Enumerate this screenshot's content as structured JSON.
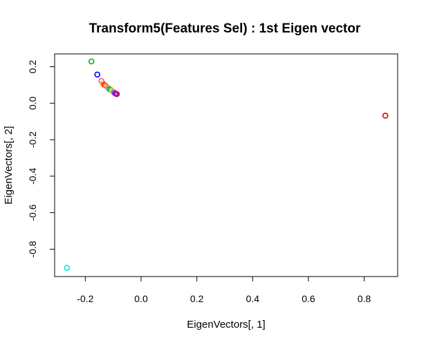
{
  "chart_data": {
    "type": "scatter",
    "title": "Transform5(Features Sel) : 1st Eigen vector",
    "xlabel": "EigenVectors[, 1]",
    "ylabel": "EigenVectors[, 2]",
    "xlim": [
      -0.31,
      0.92
    ],
    "ylim": [
      -0.95,
      0.27
    ],
    "xticks": [
      -0.2,
      0.0,
      0.2,
      0.4,
      0.6,
      0.8
    ],
    "xtick_labels": [
      "-0.2",
      "0.0",
      "0.2",
      "0.4",
      "0.6",
      "0.8"
    ],
    "yticks": [
      -0.8,
      -0.6,
      -0.4,
      -0.2,
      0.0,
      0.2
    ],
    "ytick_labels": [
      "-0.8",
      "-0.6",
      "-0.4",
      "-0.2",
      "0.0",
      "0.2"
    ],
    "grid": false,
    "points": [
      {
        "x": -0.178,
        "y": 0.229,
        "color": "#00bb00"
      },
      {
        "x": -0.157,
        "y": 0.157,
        "color": "#0000dd"
      },
      {
        "x": -0.142,
        "y": 0.122,
        "color": "#ff44cc"
      },
      {
        "x": -0.137,
        "y": 0.108,
        "color": "#ffaa00"
      },
      {
        "x": -0.131,
        "y": 0.1,
        "color": "#dd0000"
      },
      {
        "x": -0.127,
        "y": 0.096,
        "color": "#ff8800"
      },
      {
        "x": -0.119,
        "y": 0.084,
        "color": "#aaaaaa"
      },
      {
        "x": -0.112,
        "y": 0.076,
        "color": "#00aa00"
      },
      {
        "x": -0.108,
        "y": 0.073,
        "color": "#00cccc"
      },
      {
        "x": -0.104,
        "y": 0.068,
        "color": "#dddd00"
      },
      {
        "x": -0.098,
        "y": 0.06,
        "color": "#ff66cc"
      },
      {
        "x": -0.094,
        "y": 0.055,
        "color": "#4444ff"
      },
      {
        "x": -0.09,
        "y": 0.052,
        "color": "#dd0000"
      },
      {
        "x": -0.087,
        "y": 0.05,
        "color": "#aa00aa"
      },
      {
        "x": 0.876,
        "y": -0.068,
        "color": "#dd0000"
      },
      {
        "x": -0.266,
        "y": -0.902,
        "color": "#00e5ee"
      }
    ]
  }
}
